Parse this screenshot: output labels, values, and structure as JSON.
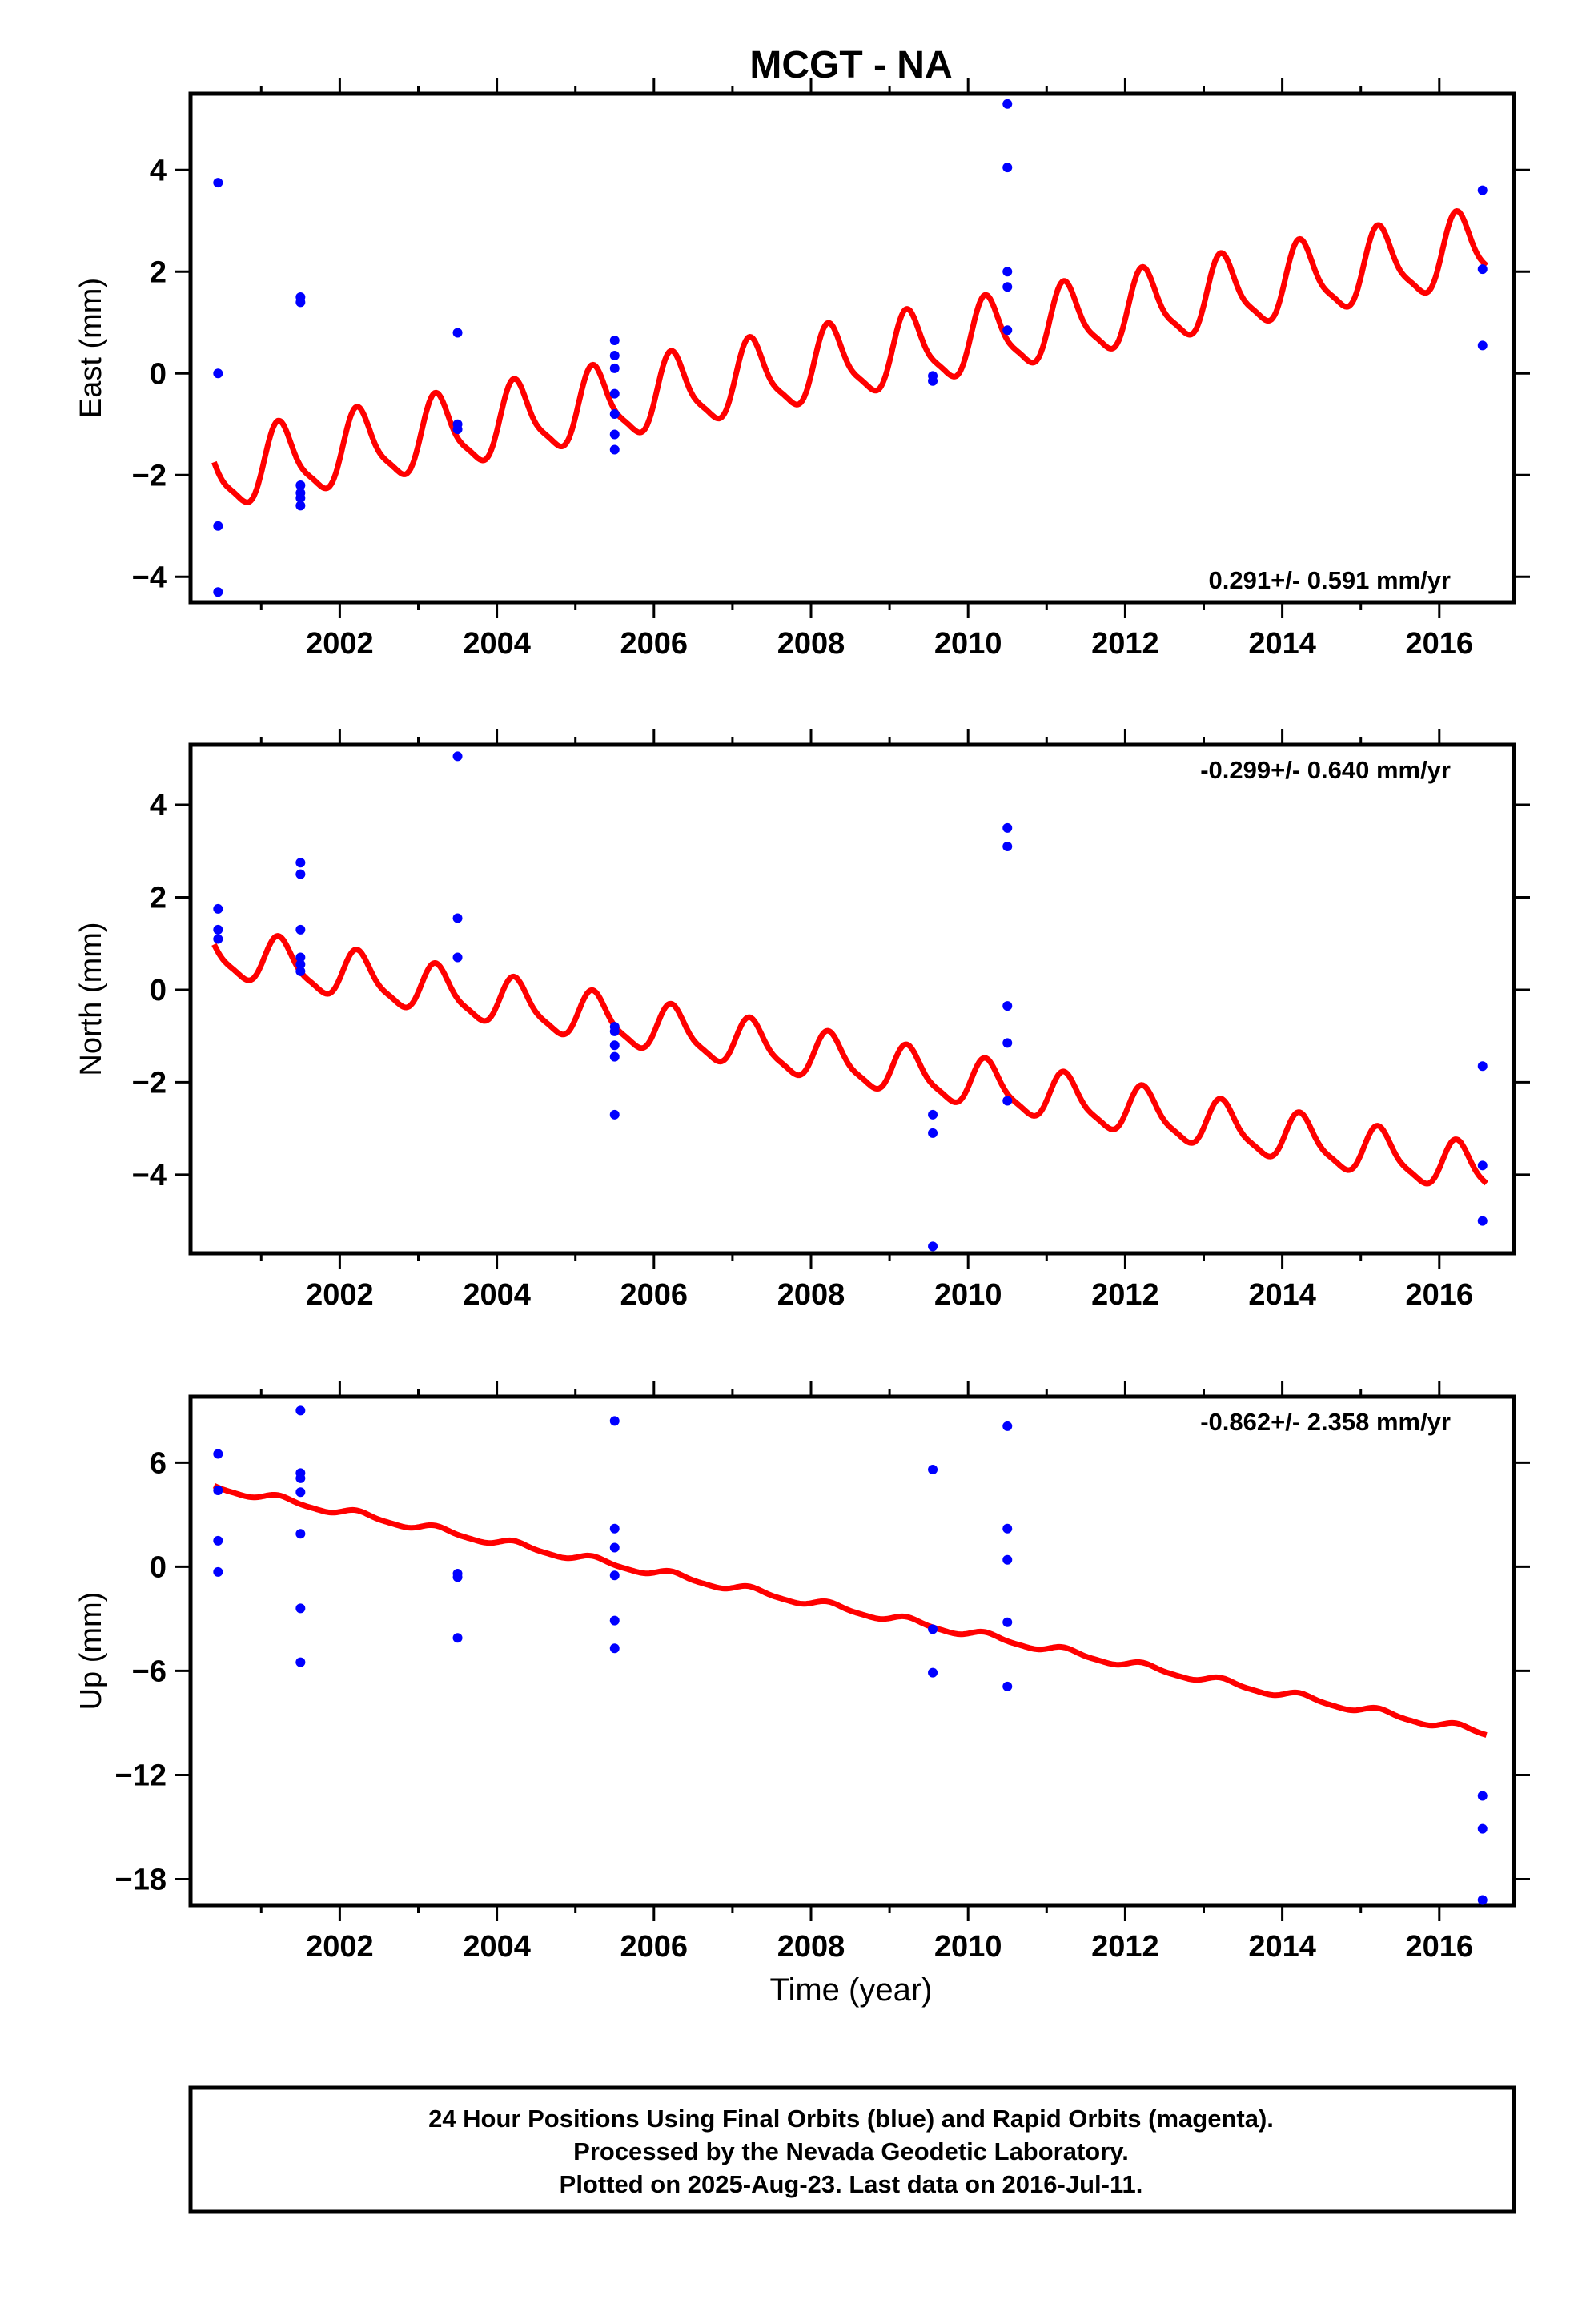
{
  "chart_data": [
    {
      "type": "scatter",
      "title": "MCGT - NA",
      "ylabel": "East (mm)",
      "rate": "0.291+/- 0.591 mm/yr",
      "rate_pos": "bottom-right",
      "xlim": [
        2000.1,
        2016.95
      ],
      "ylim": [
        -4.5,
        5.5
      ],
      "xticks": [
        2002,
        2004,
        2006,
        2008,
        2010,
        2012,
        2014,
        2016
      ],
      "xticklabels": [
        "2002",
        "2004",
        "2006",
        "2008",
        "2010",
        "2012",
        "2014",
        "2016"
      ],
      "yticks": [
        -4,
        -2,
        0,
        2,
        4
      ],
      "yticklabels": [
        "−4",
        "−2",
        "0",
        "2",
        "4"
      ],
      "points": [
        [
          2000.45,
          3.75
        ],
        [
          2000.45,
          0.0
        ],
        [
          2000.45,
          -3.0
        ],
        [
          2000.45,
          -4.3
        ],
        [
          2001.5,
          1.5
        ],
        [
          2001.5,
          1.4
        ],
        [
          2001.5,
          -2.2
        ],
        [
          2001.5,
          -2.35
        ],
        [
          2001.5,
          -2.45
        ],
        [
          2001.5,
          -2.6
        ],
        [
          2003.5,
          0.8
        ],
        [
          2003.5,
          -1.0
        ],
        [
          2003.5,
          -1.1
        ],
        [
          2005.5,
          0.65
        ],
        [
          2005.5,
          0.35
        ],
        [
          2005.5,
          0.1
        ],
        [
          2005.5,
          -0.4
        ],
        [
          2005.5,
          -0.8
        ],
        [
          2005.5,
          -1.2
        ],
        [
          2005.5,
          -1.5
        ],
        [
          2009.55,
          -0.05
        ],
        [
          2009.55,
          -0.15
        ],
        [
          2010.5,
          5.3
        ],
        [
          2010.5,
          4.05
        ],
        [
          2010.5,
          2.0
        ],
        [
          2010.5,
          1.7
        ],
        [
          2010.5,
          0.85
        ],
        [
          2016.55,
          3.6
        ],
        [
          2016.55,
          2.05
        ],
        [
          2016.55,
          0.55
        ]
      ],
      "model": {
        "trend_start": -2.0,
        "trend_end": 2.45,
        "amplitude": 0.7,
        "phase": 0.25,
        "x_start": 2000.4,
        "x_end": 2016.6
      },
      "series": [
        {
          "name": "24 Hour Positions Using Final Orbits",
          "color": "#0000ff"
        },
        {
          "name": "model",
          "color": "#ff0000"
        }
      ]
    },
    {
      "type": "scatter",
      "ylabel": "North (mm)",
      "rate": "-0.299+/- 0.640 mm/yr",
      "rate_pos": "top-right",
      "xlim": [
        2000.1,
        2016.95
      ],
      "ylim": [
        -5.7,
        5.3
      ],
      "xticks": [
        2002,
        2004,
        2006,
        2008,
        2010,
        2012,
        2014,
        2016
      ],
      "xticklabels": [
        "2002",
        "2004",
        "2006",
        "2008",
        "2010",
        "2012",
        "2014",
        "2016"
      ],
      "yticks": [
        -4,
        -2,
        0,
        2,
        4
      ],
      "yticklabels": [
        "−4",
        "−2",
        "0",
        "2",
        "4"
      ],
      "points": [
        [
          2000.45,
          1.75
        ],
        [
          2000.45,
          1.3
        ],
        [
          2000.45,
          1.1
        ],
        [
          2001.5,
          2.75
        ],
        [
          2001.5,
          2.5
        ],
        [
          2001.5,
          1.3
        ],
        [
          2001.5,
          0.7
        ],
        [
          2001.5,
          0.55
        ],
        [
          2001.5,
          0.4
        ],
        [
          2003.5,
          5.05
        ],
        [
          2003.5,
          1.55
        ],
        [
          2003.5,
          0.7
        ],
        [
          2005.5,
          -0.8
        ],
        [
          2005.5,
          -0.9
        ],
        [
          2005.5,
          -1.2
        ],
        [
          2005.5,
          -1.45
        ],
        [
          2005.5,
          -2.7
        ],
        [
          2009.55,
          -2.7
        ],
        [
          2009.55,
          -3.1
        ],
        [
          2009.55,
          -5.55
        ],
        [
          2010.5,
          3.5
        ],
        [
          2010.5,
          3.1
        ],
        [
          2010.5,
          -0.35
        ],
        [
          2010.5,
          -1.15
        ],
        [
          2010.5,
          -2.4
        ],
        [
          2016.55,
          -1.65
        ],
        [
          2016.55,
          -3.8
        ],
        [
          2016.55,
          -5.0
        ]
      ],
      "model": {
        "trend_start": 0.8,
        "trend_end": -3.95,
        "amplitude": 0.5,
        "phase": 0.25,
        "x_start": 2000.4,
        "x_end": 2016.6
      },
      "series": [
        {
          "name": "24 Hour Positions Using Final Orbits",
          "color": "#0000ff"
        },
        {
          "name": "model",
          "color": "#ff0000"
        }
      ]
    },
    {
      "type": "scatter",
      "ylabel": "Up (mm)",
      "rate": "-0.862+/- 2.358 mm/yr",
      "rate_pos": "top-right",
      "xlim": [
        2000.1,
        2016.95
      ],
      "ylim": [
        -19.5,
        9.8
      ],
      "xticks": [
        2002,
        2004,
        2006,
        2008,
        2010,
        2012,
        2014,
        2016
      ],
      "xticklabels": [
        "2002",
        "2004",
        "2006",
        "2008",
        "2010",
        "2012",
        "2014",
        "2016"
      ],
      "yticks": [
        -18,
        -12,
        -6,
        0,
        6
      ],
      "yticklabels": [
        "−18",
        "−12",
        "−6",
        "0",
        "6"
      ],
      "points": [
        [
          2000.45,
          6.5
        ],
        [
          2000.45,
          4.4
        ],
        [
          2000.45,
          1.5
        ],
        [
          2000.45,
          -0.3
        ],
        [
          2001.5,
          9.0
        ],
        [
          2001.5,
          5.4
        ],
        [
          2001.5,
          5.1
        ],
        [
          2001.5,
          4.3
        ],
        [
          2001.5,
          1.9
        ],
        [
          2001.5,
          -2.4
        ],
        [
          2001.5,
          -5.5
        ],
        [
          2003.5,
          -0.4
        ],
        [
          2003.5,
          -0.6
        ],
        [
          2003.5,
          -4.1
        ],
        [
          2005.5,
          8.4
        ],
        [
          2005.5,
          2.2
        ],
        [
          2005.5,
          1.1
        ],
        [
          2005.5,
          -0.5
        ],
        [
          2005.5,
          -3.1
        ],
        [
          2005.5,
          -4.7
        ],
        [
          2009.55,
          5.6
        ],
        [
          2009.55,
          -3.6
        ],
        [
          2009.55,
          -6.1
        ],
        [
          2010.5,
          8.1
        ],
        [
          2010.5,
          2.2
        ],
        [
          2010.5,
          0.4
        ],
        [
          2010.5,
          -3.2
        ],
        [
          2010.5,
          -6.9
        ],
        [
          2016.55,
          -13.2
        ],
        [
          2016.55,
          -15.1
        ],
        [
          2016.55,
          -19.2
        ]
      ],
      "model": {
        "trend_start": 4.6,
        "trend_end": -9.6,
        "amplitude": 0.2,
        "phase": 0.25,
        "x_start": 2000.4,
        "x_end": 2016.6
      },
      "series": [
        {
          "name": "24 Hour Positions Using Final Orbits",
          "color": "#0000ff"
        },
        {
          "name": "model",
          "color": "#ff0000"
        }
      ]
    }
  ],
  "xlabel": "Time (year)",
  "footer": {
    "line1": "24 Hour Positions Using Final Orbits (blue) and Rapid Orbits (magenta).",
    "line2": "Processed by the Nevada Geodetic Laboratory.",
    "line3": "Plotted on 2025-Aug-23. Last data on 2016-Jul-11."
  }
}
